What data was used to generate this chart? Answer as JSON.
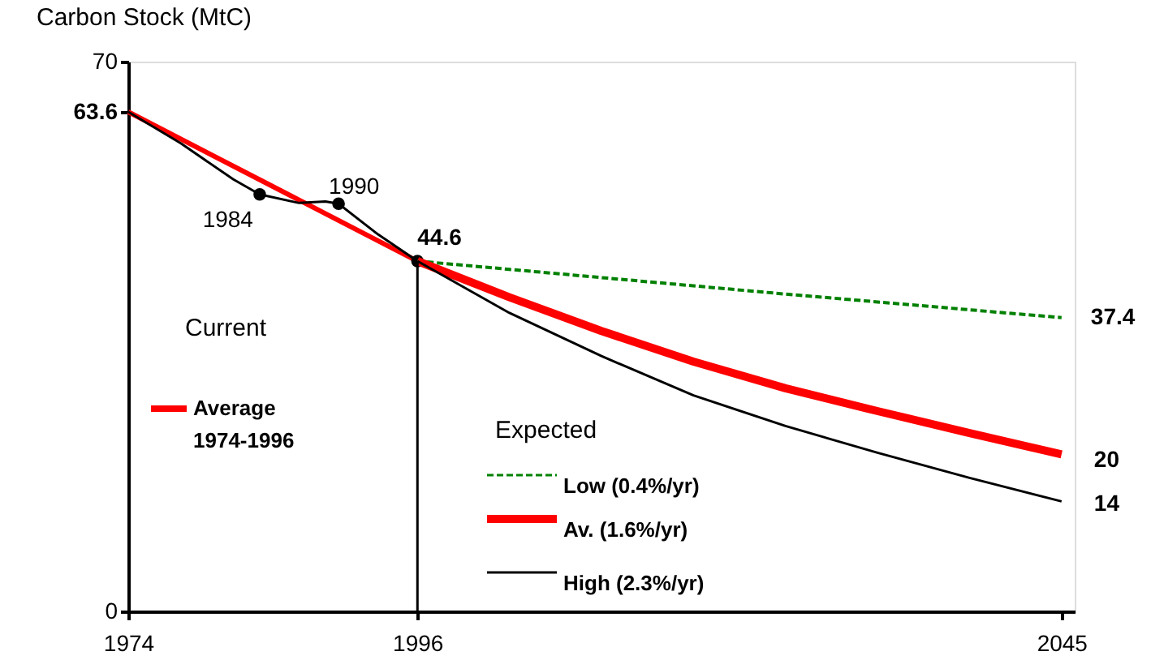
{
  "chart_data": {
    "type": "line",
    "ylabel": "Carbon Stock (MtC)",
    "legend_title": "Expected",
    "xlim": [
      1974,
      2046
    ],
    "xticks": [
      1974,
      1996,
      2045
    ],
    "ylim": [
      0,
      70
    ],
    "yticks": [
      0,
      {
        "value": 63.6,
        "label": "63.6"
      },
      70
    ],
    "grid": false,
    "legend": "bottom",
    "series": [
      {
        "name": "Average 1974-1996",
        "color": "#ff0000",
        "line_style": "solid",
        "x": [
          1974,
          1985,
          1996
        ],
        "values": [
          63.6,
          54.1,
          44.6
        ]
      },
      {
        "color": "#000000",
        "line_style": "solid",
        "x": [
          1974,
          1978,
          1982,
          1984,
          1987,
          1989,
          1990,
          1993,
          1996
        ],
        "values": [
          63.6,
          59.6,
          55.0,
          53.1,
          52.0,
          52.2,
          51.9,
          48.0,
          44.6
        ]
      },
      {
        "type": "scatter",
        "color": "#000000",
        "marker": "circle",
        "x": [
          1984,
          1990,
          1996
        ],
        "values": [
          53.1,
          51.9,
          44.6
        ]
      },
      {
        "name": "Low (0.4%/yr)",
        "color": "#008000",
        "line_style": "dashed",
        "x": [
          1996,
          2010,
          2024,
          2045
        ],
        "values": [
          44.6,
          42.5,
          40.4,
          37.4
        ]
      },
      {
        "name": "Av.   (1.6%/yr)",
        "color": "#ff0000",
        "line_style": "solid",
        "x": [
          1996,
          2003,
          2010,
          2017,
          2024,
          2031,
          2038,
          2045
        ],
        "values": [
          44.6,
          40.0,
          35.7,
          31.8,
          28.4,
          25.5,
          22.7,
          20
        ]
      },
      {
        "name": "High (2.3%/yr)",
        "color": "#000000",
        "line_style": "solid",
        "x": [
          1996,
          2003,
          2010,
          2017,
          2024,
          2031,
          2038,
          2045
        ],
        "values": [
          44.6,
          38.0,
          32.5,
          27.5,
          23.6,
          20.2,
          17.0,
          14
        ]
      }
    ],
    "ref_lines": [
      {
        "axis": "x",
        "value": 1996,
        "color": "#000000"
      }
    ],
    "annotations": [
      "Current",
      {
        "text": "1984",
        "x": 1984,
        "y": 53.1
      },
      {
        "text": "1990",
        "x": 1990,
        "y": 51.9
      },
      {
        "text": "44.6",
        "x": 1996,
        "y": 44.6
      },
      {
        "text": "37.4",
        "x": 2045,
        "y": 37.4
      },
      {
        "text": "20",
        "x": 2045,
        "y": 20
      },
      {
        "text": "14",
        "x": 2045,
        "y": 14
      }
    ]
  }
}
